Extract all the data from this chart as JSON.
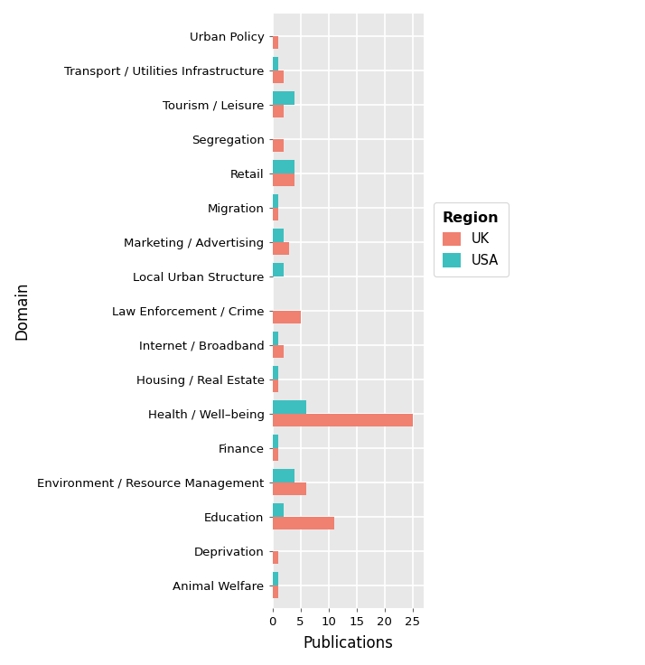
{
  "categories": [
    "Urban Policy",
    "Transport / Utilities Infrastructure",
    "Tourism / Leisure",
    "Segregation",
    "Retail",
    "Migration",
    "Marketing / Advertising",
    "Local Urban Structure",
    "Law Enforcement / Crime",
    "Internet / Broadband",
    "Housing / Real Estate",
    "Health / Well–being",
    "Finance",
    "Environment / Resource Management",
    "Education",
    "Deprivation",
    "Animal Welfare"
  ],
  "uk_values": [
    1,
    2,
    2,
    2,
    4,
    1,
    3,
    0,
    5,
    2,
    1,
    25,
    1,
    6,
    11,
    1,
    1
  ],
  "usa_values": [
    0,
    1,
    4,
    0,
    4,
    1,
    2,
    2,
    0,
    1,
    1,
    6,
    1,
    4,
    2,
    0,
    1
  ],
  "uk_color": "#F08070",
  "usa_color": "#3DBFBF",
  "xlabel": "Publications",
  "ylabel": "Domain",
  "legend_title": "Region",
  "bg_color": "#E8E8E8",
  "xlim": [
    0,
    27
  ],
  "xticks": [
    0,
    5,
    10,
    15,
    20,
    25
  ]
}
